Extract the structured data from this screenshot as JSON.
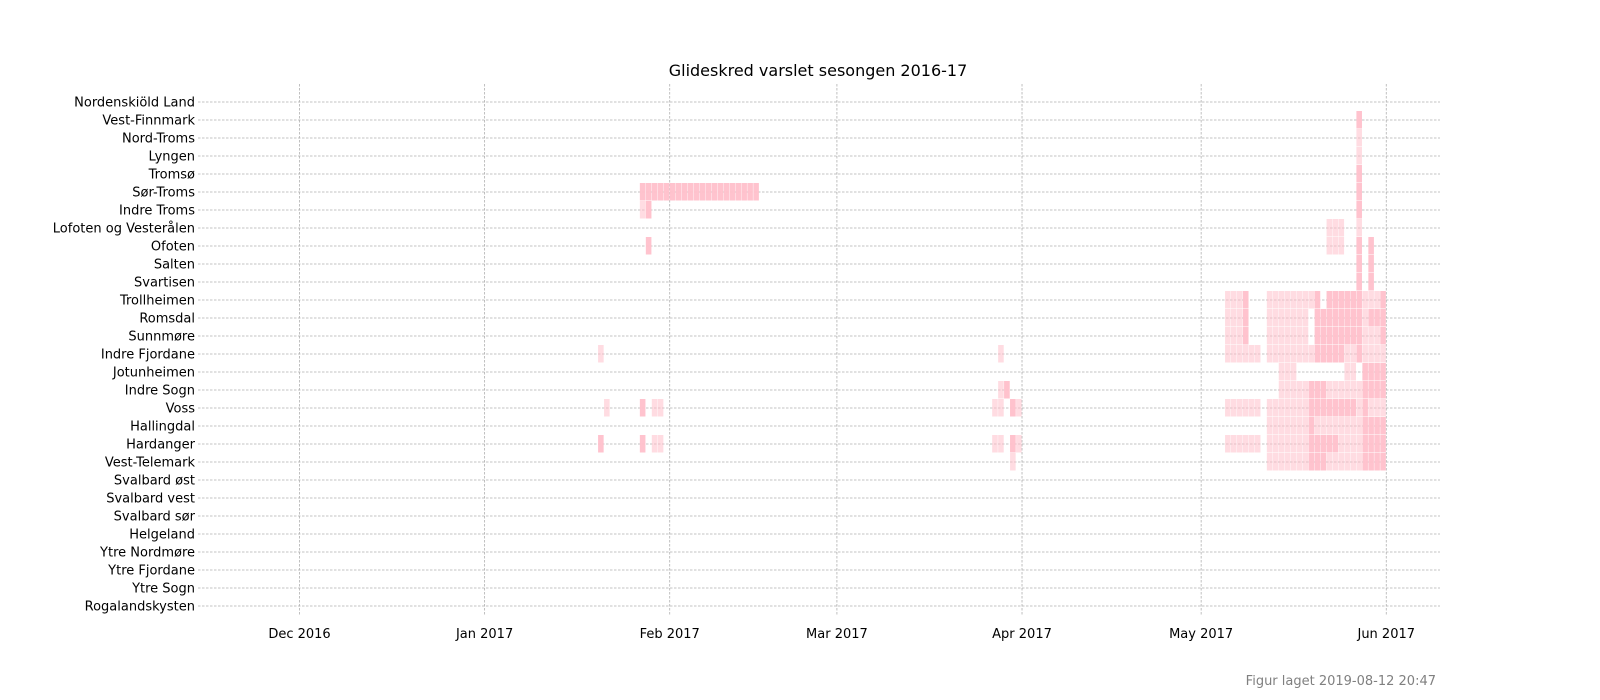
{
  "chart_data": {
    "type": "heatmap",
    "title": "Glideskred varslet sesongen 2016-17",
    "xlabel": "",
    "ylabel": "",
    "grid": true,
    "x_range": [
      "2016-11-14",
      "2017-06-10"
    ],
    "x_ticks": [
      {
        "date": "2016-12-01",
        "label": "Dec 2016"
      },
      {
        "date": "2017-01-01",
        "label": "Jan 2017"
      },
      {
        "date": "2017-02-01",
        "label": "Feb 2017"
      },
      {
        "date": "2017-03-01",
        "label": "Mar 2017"
      },
      {
        "date": "2017-04-01",
        "label": "Apr 2017"
      },
      {
        "date": "2017-05-01",
        "label": "May 2017"
      },
      {
        "date": "2017-06-01",
        "label": "Jun 2017"
      }
    ],
    "regions": [
      "Nordenskiöld Land",
      "Vest-Finnmark",
      "Nord-Troms",
      "Lyngen",
      "Tromsø",
      "Sør-Troms",
      "Indre Troms",
      "Lofoten og Vesterålen",
      "Ofoten",
      "Salten",
      "Svartisen",
      "Trollheimen",
      "Romsdal",
      "Sunnmøre",
      "Indre Fjordane",
      "Jotunheimen",
      "Indre Sogn",
      "Voss",
      "Hallingdal",
      "Hardanger",
      "Vest-Telemark",
      "Svalbard øst",
      "Svalbard vest",
      "Svalbard sør",
      "Helgeland",
      "Ytre Nordmøre",
      "Ytre Fjordane",
      "Ytre Sogn",
      "Rogalandskysten"
    ],
    "color": "#ffc0cb",
    "events": [
      {
        "region": "Sør-Troms",
        "start": "2017-01-27",
        "end": "2017-02-16",
        "level": 2
      },
      {
        "region": "Indre Troms",
        "start": "2017-01-27",
        "end": "2017-01-29",
        "level": 1
      },
      {
        "region": "Indre Troms",
        "start": "2017-01-28",
        "end": "2017-01-29",
        "level": 2
      },
      {
        "region": "Ofoten",
        "start": "2017-01-28",
        "end": "2017-01-29",
        "level": 2
      },
      {
        "region": "Indre Fjordane",
        "start": "2017-01-20",
        "end": "2017-01-21",
        "level": 1
      },
      {
        "region": "Voss",
        "start": "2017-01-21",
        "end": "2017-01-22",
        "level": 1
      },
      {
        "region": "Voss",
        "start": "2017-01-27",
        "end": "2017-01-28",
        "level": 2
      },
      {
        "region": "Voss",
        "start": "2017-01-29",
        "end": "2017-01-31",
        "level": 1
      },
      {
        "region": "Hardanger",
        "start": "2017-01-20",
        "end": "2017-01-21",
        "level": 2
      },
      {
        "region": "Hardanger",
        "start": "2017-01-27",
        "end": "2017-01-28",
        "level": 2
      },
      {
        "region": "Hardanger",
        "start": "2017-01-29",
        "end": "2017-01-31",
        "level": 1
      },
      {
        "region": "Indre Fjordane",
        "start": "2017-03-28",
        "end": "2017-03-29",
        "level": 1
      },
      {
        "region": "Indre Sogn",
        "start": "2017-03-28",
        "end": "2017-03-30",
        "level": 1
      },
      {
        "region": "Indre Sogn",
        "start": "2017-03-29",
        "end": "2017-03-30",
        "level": 2
      },
      {
        "region": "Voss",
        "start": "2017-03-27",
        "end": "2017-03-29",
        "level": 1
      },
      {
        "region": "Voss",
        "start": "2017-03-30",
        "end": "2017-04-01",
        "level": 1
      },
      {
        "region": "Voss",
        "start": "2017-03-30",
        "end": "2017-03-31",
        "level": 2
      },
      {
        "region": "Hardanger",
        "start": "2017-03-27",
        "end": "2017-03-29",
        "level": 1
      },
      {
        "region": "Hardanger",
        "start": "2017-03-30",
        "end": "2017-04-01",
        "level": 1
      },
      {
        "region": "Hardanger",
        "start": "2017-03-30",
        "end": "2017-03-31",
        "level": 2
      },
      {
        "region": "Vest-Telemark",
        "start": "2017-03-30",
        "end": "2017-03-31",
        "level": 1
      },
      {
        "region": "Vest-Finnmark",
        "start": "2017-05-27",
        "end": "2017-05-28",
        "level": 2
      },
      {
        "region": "Nord-Troms",
        "start": "2017-05-27",
        "end": "2017-05-28",
        "level": 1
      },
      {
        "region": "Lyngen",
        "start": "2017-05-27",
        "end": "2017-05-28",
        "level": 1
      },
      {
        "region": "Tromsø",
        "start": "2017-05-27",
        "end": "2017-05-28",
        "level": 2
      },
      {
        "region": "Sør-Troms",
        "start": "2017-05-27",
        "end": "2017-05-28",
        "level": 2
      },
      {
        "region": "Indre Troms",
        "start": "2017-05-27",
        "end": "2017-05-28",
        "level": 2
      },
      {
        "region": "Lofoten og Vesterålen",
        "start": "2017-05-22",
        "end": "2017-05-25",
        "level": 1
      },
      {
        "region": "Lofoten og Vesterålen",
        "start": "2017-05-27",
        "end": "2017-05-28",
        "level": 1
      },
      {
        "region": "Ofoten",
        "start": "2017-05-22",
        "end": "2017-05-25",
        "level": 1
      },
      {
        "region": "Ofoten",
        "start": "2017-05-27",
        "end": "2017-05-28",
        "level": 2
      },
      {
        "region": "Ofoten",
        "start": "2017-05-29",
        "end": "2017-05-30",
        "level": 2
      },
      {
        "region": "Salten",
        "start": "2017-05-27",
        "end": "2017-05-28",
        "level": 2
      },
      {
        "region": "Salten",
        "start": "2017-05-29",
        "end": "2017-05-30",
        "level": 2
      },
      {
        "region": "Svartisen",
        "start": "2017-05-27",
        "end": "2017-05-28",
        "level": 2
      },
      {
        "region": "Svartisen",
        "start": "2017-05-29",
        "end": "2017-05-30",
        "level": 2
      },
      {
        "region": "Trollheimen",
        "start": "2017-05-05",
        "end": "2017-05-08",
        "level": 1
      },
      {
        "region": "Trollheimen",
        "start": "2017-05-08",
        "end": "2017-05-09",
        "level": 2
      },
      {
        "region": "Trollheimen",
        "start": "2017-05-12",
        "end": "2017-05-21",
        "level": 1
      },
      {
        "region": "Trollheimen",
        "start": "2017-05-20",
        "end": "2017-05-21",
        "level": 2
      },
      {
        "region": "Trollheimen",
        "start": "2017-05-22",
        "end": "2017-05-28",
        "level": 2
      },
      {
        "region": "Trollheimen",
        "start": "2017-05-28",
        "end": "2017-05-29",
        "level": 1
      },
      {
        "region": "Trollheimen",
        "start": "2017-05-29",
        "end": "2017-05-31",
        "level": 1
      },
      {
        "region": "Trollheimen",
        "start": "2017-05-31",
        "end": "2017-06-01",
        "level": 2
      },
      {
        "region": "Romsdal",
        "start": "2017-05-05",
        "end": "2017-05-08",
        "level": 1
      },
      {
        "region": "Romsdal",
        "start": "2017-05-08",
        "end": "2017-05-09",
        "level": 2
      },
      {
        "region": "Romsdal",
        "start": "2017-05-12",
        "end": "2017-05-19",
        "level": 1
      },
      {
        "region": "Romsdal",
        "start": "2017-05-20",
        "end": "2017-05-28",
        "level": 2
      },
      {
        "region": "Romsdal",
        "start": "2017-05-28",
        "end": "2017-05-29",
        "level": 1
      },
      {
        "region": "Romsdal",
        "start": "2017-05-29",
        "end": "2017-06-01",
        "level": 2
      },
      {
        "region": "Sunnmøre",
        "start": "2017-05-05",
        "end": "2017-05-08",
        "level": 1
      },
      {
        "region": "Sunnmøre",
        "start": "2017-05-08",
        "end": "2017-05-09",
        "level": 2
      },
      {
        "region": "Sunnmøre",
        "start": "2017-05-12",
        "end": "2017-05-19",
        "level": 1
      },
      {
        "region": "Sunnmøre",
        "start": "2017-05-20",
        "end": "2017-05-28",
        "level": 2
      },
      {
        "region": "Sunnmøre",
        "start": "2017-05-28",
        "end": "2017-05-31",
        "level": 1
      },
      {
        "region": "Sunnmøre",
        "start": "2017-05-31",
        "end": "2017-06-01",
        "level": 2
      },
      {
        "region": "Indre Fjordane",
        "start": "2017-05-05",
        "end": "2017-05-11",
        "level": 1
      },
      {
        "region": "Indre Fjordane",
        "start": "2017-05-12",
        "end": "2017-05-20",
        "level": 1
      },
      {
        "region": "Indre Fjordane",
        "start": "2017-05-20",
        "end": "2017-05-25",
        "level": 2
      },
      {
        "region": "Indre Fjordane",
        "start": "2017-05-25",
        "end": "2017-05-27",
        "level": 1
      },
      {
        "region": "Indre Fjordane",
        "start": "2017-05-27",
        "end": "2017-05-28",
        "level": 2
      },
      {
        "region": "Indre Fjordane",
        "start": "2017-05-28",
        "end": "2017-06-01",
        "level": 1
      },
      {
        "region": "Jotunheimen",
        "start": "2017-05-14",
        "end": "2017-05-17",
        "level": 1
      },
      {
        "region": "Jotunheimen",
        "start": "2017-05-25",
        "end": "2017-05-27",
        "level": 1
      },
      {
        "region": "Jotunheimen",
        "start": "2017-05-28",
        "end": "2017-06-01",
        "level": 2
      },
      {
        "region": "Indre Sogn",
        "start": "2017-05-14",
        "end": "2017-05-19",
        "level": 1
      },
      {
        "region": "Indre Sogn",
        "start": "2017-05-19",
        "end": "2017-05-22",
        "level": 2
      },
      {
        "region": "Indre Sogn",
        "start": "2017-05-22",
        "end": "2017-05-28",
        "level": 1
      },
      {
        "region": "Indre Sogn",
        "start": "2017-05-28",
        "end": "2017-06-01",
        "level": 2
      },
      {
        "region": "Voss",
        "start": "2017-05-05",
        "end": "2017-05-11",
        "level": 1
      },
      {
        "region": "Voss",
        "start": "2017-05-12",
        "end": "2017-05-19",
        "level": 1
      },
      {
        "region": "Voss",
        "start": "2017-05-19",
        "end": "2017-05-27",
        "level": 2
      },
      {
        "region": "Voss",
        "start": "2017-05-27",
        "end": "2017-05-28",
        "level": 1
      },
      {
        "region": "Voss",
        "start": "2017-05-28",
        "end": "2017-05-29",
        "level": 2
      },
      {
        "region": "Voss",
        "start": "2017-05-29",
        "end": "2017-06-01",
        "level": 1
      },
      {
        "region": "Hallingdal",
        "start": "2017-05-12",
        "end": "2017-05-19",
        "level": 1
      },
      {
        "region": "Hallingdal",
        "start": "2017-05-19",
        "end": "2017-05-20",
        "level": 2
      },
      {
        "region": "Hallingdal",
        "start": "2017-05-20",
        "end": "2017-05-28",
        "level": 1
      },
      {
        "region": "Hallingdal",
        "start": "2017-05-28",
        "end": "2017-06-01",
        "level": 2
      },
      {
        "region": "Hardanger",
        "start": "2017-05-05",
        "end": "2017-05-11",
        "level": 1
      },
      {
        "region": "Hardanger",
        "start": "2017-05-12",
        "end": "2017-05-19",
        "level": 1
      },
      {
        "region": "Hardanger",
        "start": "2017-05-19",
        "end": "2017-05-24",
        "level": 2
      },
      {
        "region": "Hardanger",
        "start": "2017-05-24",
        "end": "2017-05-28",
        "level": 1
      },
      {
        "region": "Hardanger",
        "start": "2017-05-28",
        "end": "2017-06-01",
        "level": 2
      },
      {
        "region": "Vest-Telemark",
        "start": "2017-05-12",
        "end": "2017-05-19",
        "level": 1
      },
      {
        "region": "Vest-Telemark",
        "start": "2017-05-19",
        "end": "2017-05-22",
        "level": 2
      },
      {
        "region": "Vest-Telemark",
        "start": "2017-05-22",
        "end": "2017-05-28",
        "level": 1
      },
      {
        "region": "Vest-Telemark",
        "start": "2017-05-28",
        "end": "2017-06-01",
        "level": 2
      }
    ]
  },
  "footer": "Figur laget 2019-08-12 20:47"
}
